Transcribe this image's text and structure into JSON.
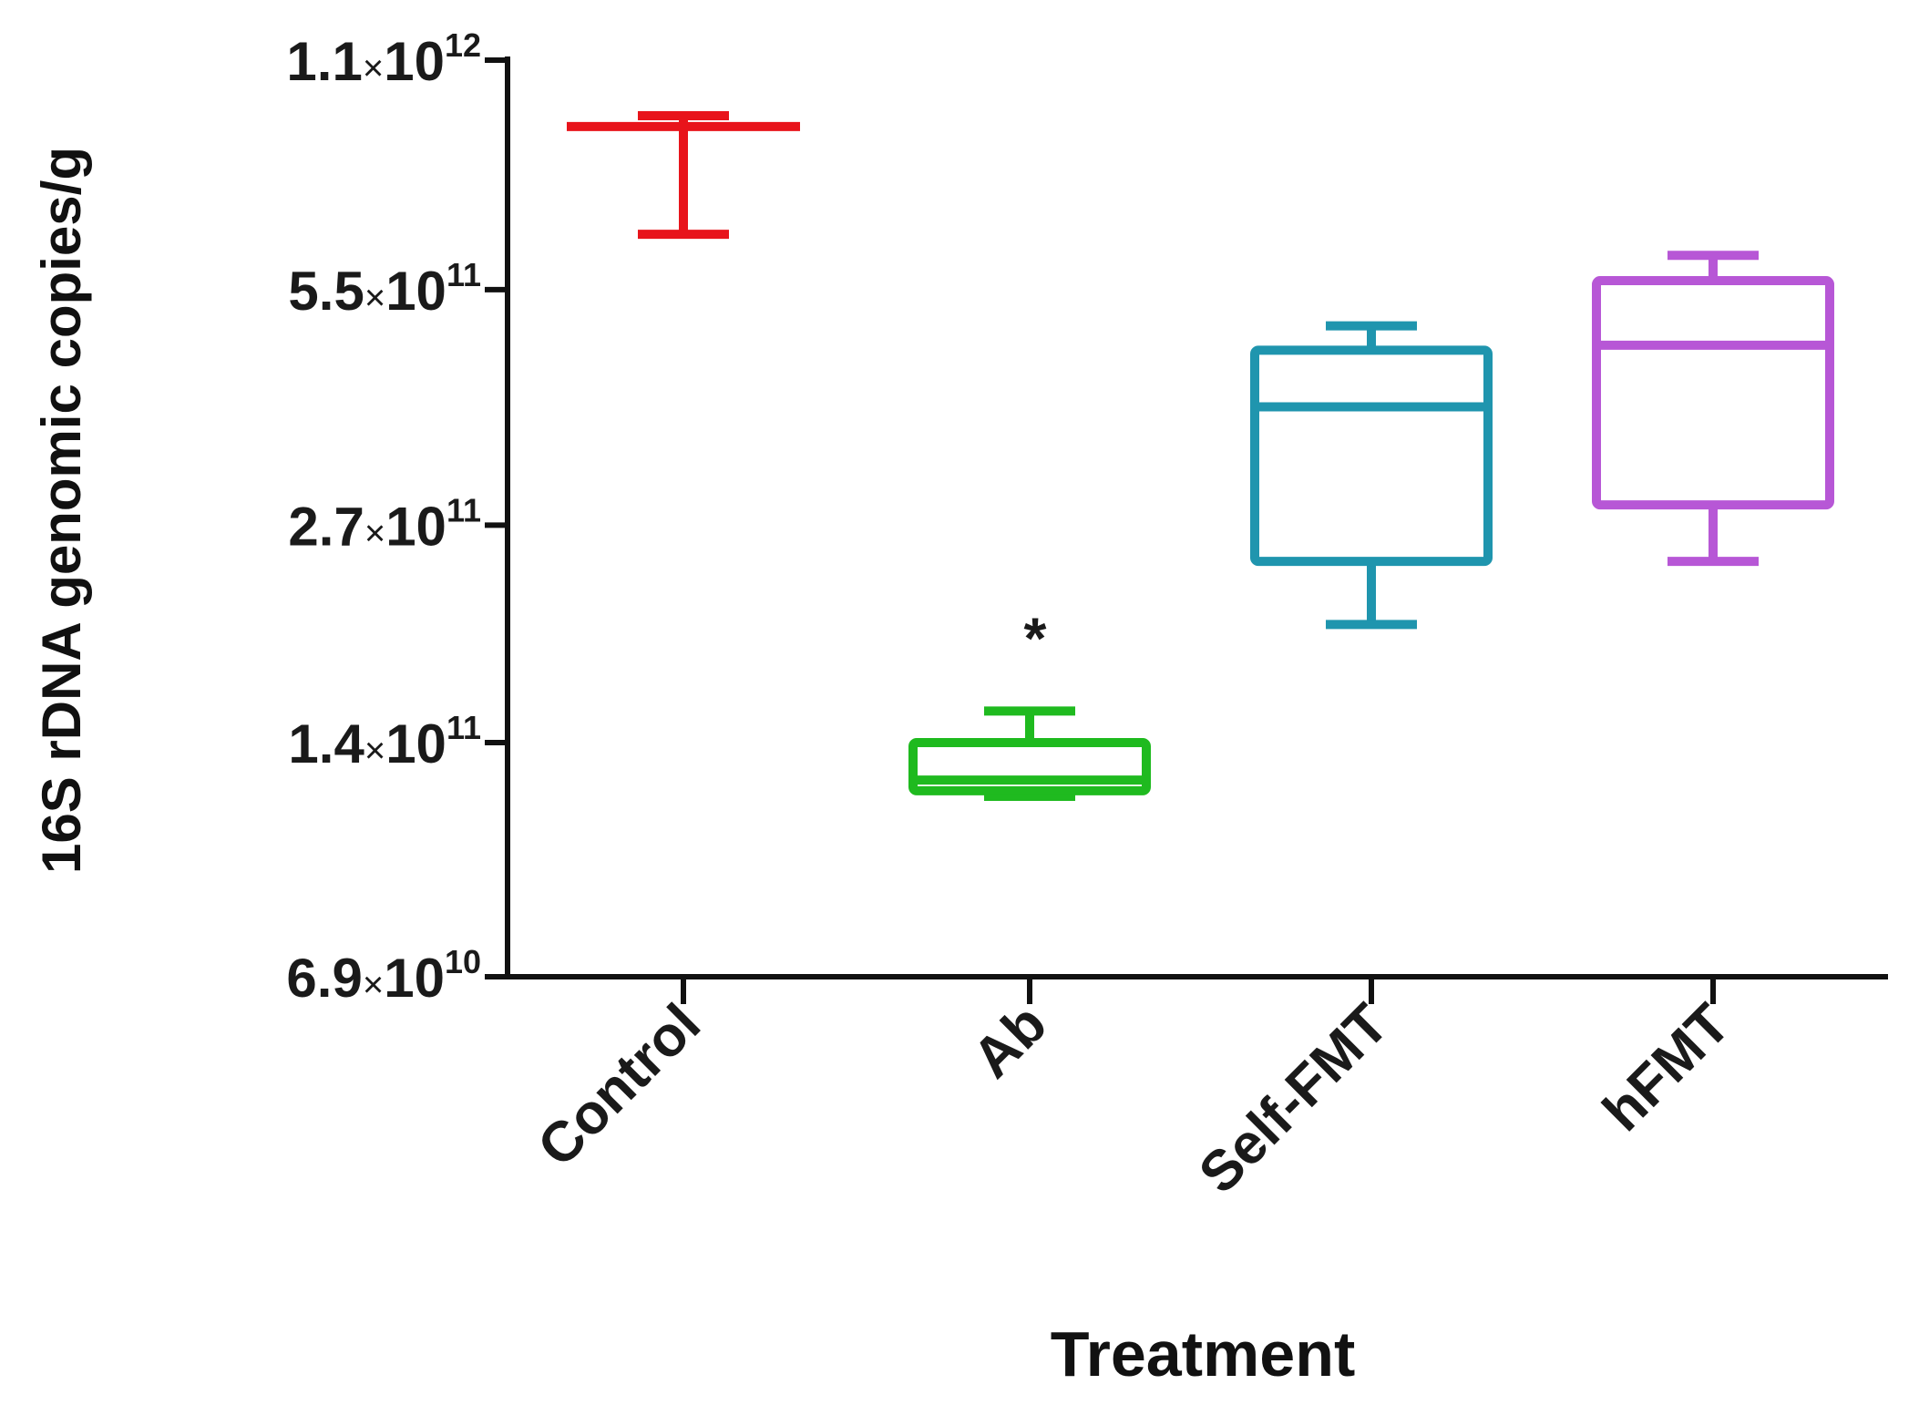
{
  "chart_data": {
    "type": "box",
    "title": "",
    "xlabel": "Treatment",
    "ylabel": "16S rDNA genomic copies/g",
    "yscale": "log2",
    "ylim": [
      69000000000.0,
      1100000000000.0
    ],
    "yticks": [
      {
        "value": 1100000000000.0,
        "mantissa": "1.1",
        "times": "×",
        "base": "10",
        "exp": "12"
      },
      {
        "value": 550000000000.0,
        "mantissa": "5.5",
        "times": "×",
        "base": "10",
        "exp": "11"
      },
      {
        "value": 270000000000.0,
        "mantissa": "2.7",
        "times": "×",
        "base": "10",
        "exp": "11"
      },
      {
        "value": 140000000000.0,
        "mantissa": "1.4",
        "times": "×",
        "base": "10",
        "exp": "11"
      },
      {
        "value": 69000000000.0,
        "mantissa": "6.9",
        "times": "×",
        "base": "10",
        "exp": "10"
      }
    ],
    "categories": [
      "Control",
      "Ab",
      "Self-FMT",
      "hFMT"
    ],
    "boxes": [
      {
        "name": "Control",
        "color": "#e8141b",
        "min": 650000000000.0,
        "q1": 900000000000.0,
        "median": 900000000000.0,
        "q3": 900000000000.0,
        "max": 930000000000.0
      },
      {
        "name": "Ab",
        "color": "#1fba1f",
        "min": 119000000000.0,
        "q1": 121000000000.0,
        "median": 125000000000.0,
        "q3": 140000000000.0,
        "max": 154000000000.0
      },
      {
        "name": "Self-FMT",
        "color": "#1f95ae",
        "min": 200000000000.0,
        "q1": 242000000000.0,
        "median": 386000000000.0,
        "q3": 458000000000.0,
        "max": 493000000000.0
      },
      {
        "name": "hFMT",
        "color": "#b757d6",
        "min": 242000000000.0,
        "q1": 287000000000.0,
        "median": 465000000000.0,
        "q3": 565000000000.0,
        "max": 610000000000.0
      }
    ],
    "annotations": [
      {
        "category": "Ab",
        "text": "*"
      }
    ]
  }
}
